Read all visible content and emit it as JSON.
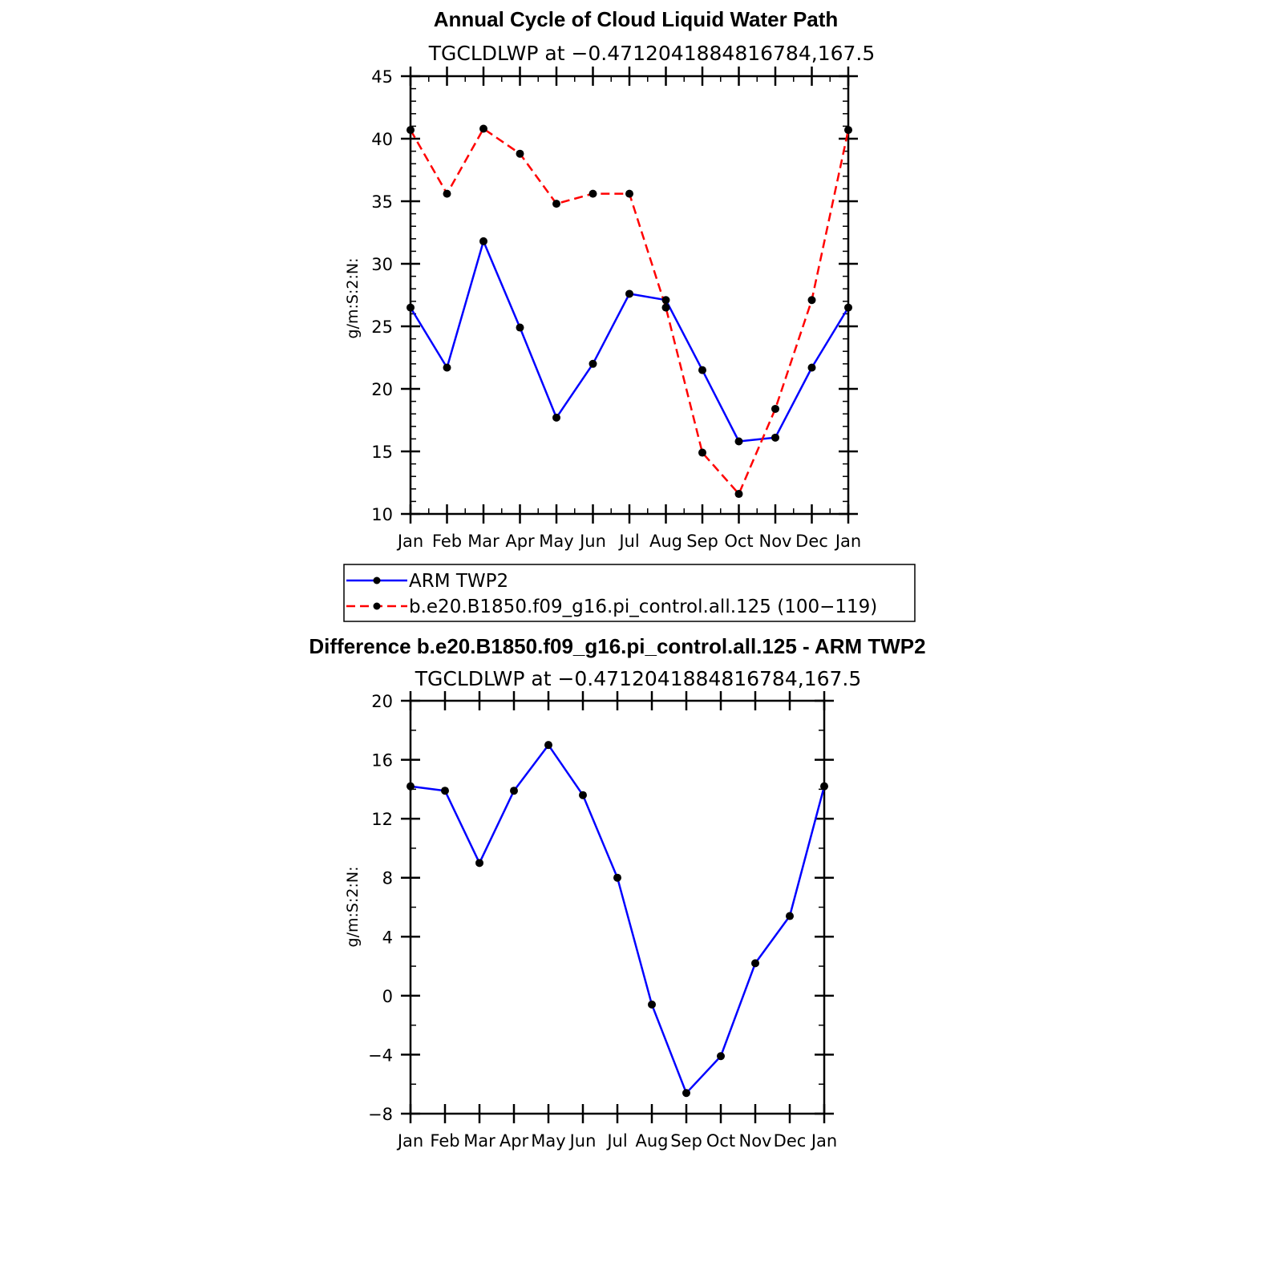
{
  "chart_data": [
    {
      "type": "line",
      "title": "Annual Cycle of Cloud Liquid Water Path",
      "subtitle": "TGCLDLWP at −0.4712041884816784,167.5",
      "xlabel": "",
      "ylabel": "g/m:S:2:N:",
      "categories": [
        "Jan",
        "Feb",
        "Mar",
        "Apr",
        "May",
        "Jun",
        "Jul",
        "Aug",
        "Sep",
        "Oct",
        "Nov",
        "Dec",
        "Jan"
      ],
      "ylim": [
        10,
        45
      ],
      "yticks": [
        "10",
        "15",
        "20",
        "25",
        "30",
        "35",
        "40",
        "45"
      ],
      "series": [
        {
          "name": "ARM TWP2",
          "color": "#0000ff",
          "dash": "solid",
          "values": [
            26.5,
            21.7,
            31.8,
            24.9,
            17.7,
            22.0,
            27.6,
            27.1,
            21.5,
            15.8,
            16.1,
            21.7,
            26.5
          ]
        },
        {
          "name": "b.e20.B1850.f09_g16.pi_control.all.125 (100−119)",
          "color": "#ff0000",
          "dash": "dashed",
          "values": [
            40.7,
            35.6,
            40.8,
            38.8,
            34.8,
            35.6,
            35.6,
            26.5,
            14.9,
            11.6,
            18.4,
            27.1,
            40.7
          ]
        }
      ]
    },
    {
      "type": "line",
      "title": "Difference b.e20.B1850.f09_g16.pi_control.all.125 - ARM TWP2",
      "subtitle": "TGCLDLWP at −0.4712041884816784,167.5",
      "xlabel": "",
      "ylabel": "g/m:S:2:N:",
      "categories": [
        "Jan",
        "Feb",
        "Mar",
        "Apr",
        "May",
        "Jun",
        "Jul",
        "Aug",
        "Sep",
        "Oct",
        "Nov",
        "Dec",
        "Jan"
      ],
      "ylim": [
        -8,
        20
      ],
      "yticks": [
        "−8",
        "−4",
        "0",
        "4",
        "8",
        "12",
        "16",
        "20"
      ],
      "series": [
        {
          "name": "Difference",
          "color": "#0000ff",
          "dash": "solid",
          "values": [
            14.2,
            13.9,
            9.0,
            13.9,
            17.0,
            13.6,
            8.0,
            -0.6,
            -6.6,
            -4.1,
            2.2,
            5.4,
            14.2
          ]
        }
      ]
    }
  ]
}
